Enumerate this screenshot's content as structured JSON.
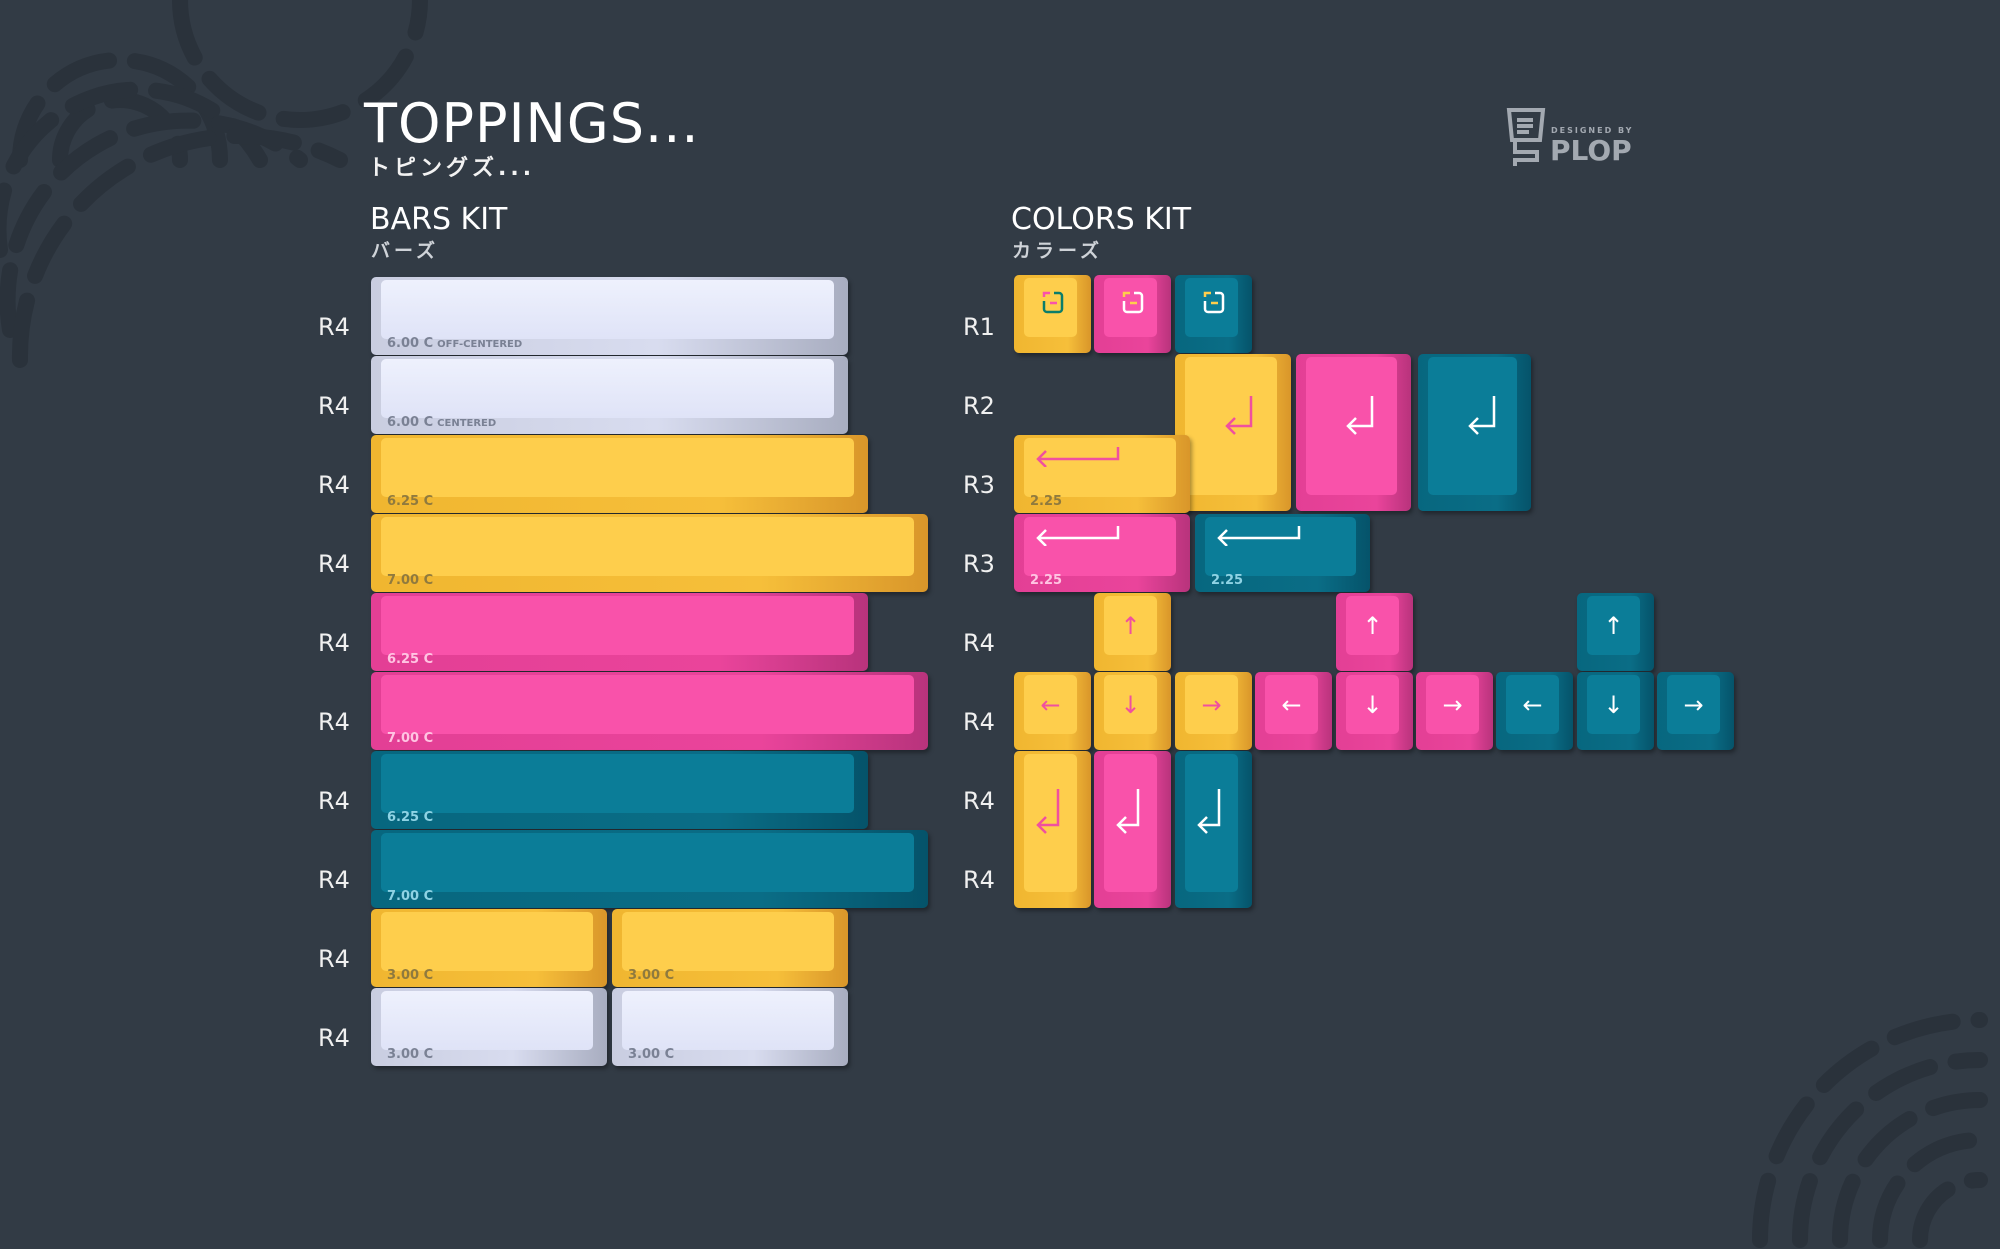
{
  "header": {
    "title": "TOPPINGS...",
    "subtitle_jp": "トピングズ...",
    "logo_small": "DESIGNED BY",
    "logo_name": "PLOP",
    "logo_icon": "keycap-mascot-icon"
  },
  "colors": {
    "background": "#323b45",
    "yellow": "#fece4c",
    "pink": "#f952aa",
    "teal": "#0b7d98",
    "white": "#e6e9fa"
  },
  "bars_kit": {
    "title": "BARS KIT",
    "title_jp": "バーズ",
    "rows": [
      "R4",
      "R4",
      "R4",
      "R4",
      "R4",
      "R4",
      "R4",
      "R4",
      "R4",
      "R4"
    ],
    "keys": [
      {
        "size": "6.00 C",
        "note": "OFF-CENTERED",
        "color": "white"
      },
      {
        "size": "6.00 C",
        "note": "CENTERED",
        "color": "white"
      },
      {
        "size": "6.25 C",
        "color": "yellow"
      },
      {
        "size": "7.00 C",
        "color": "yellow"
      },
      {
        "size": "6.25 C",
        "color": "pink"
      },
      {
        "size": "7.00 C",
        "color": "pink"
      },
      {
        "size": "6.25 C",
        "color": "teal"
      },
      {
        "size": "7.00 C",
        "color": "teal"
      },
      {
        "size": "3.00 C",
        "color": "yellow"
      },
      {
        "size": "3.00 C",
        "color": "yellow"
      },
      {
        "size": "3.00 C",
        "color": "white"
      },
      {
        "size": "3.00 C",
        "color": "white"
      }
    ]
  },
  "colors_kit": {
    "title": "COLORS KIT",
    "title_jp": "カラーズ",
    "rows": [
      "R1",
      "R2",
      "R3",
      "R3",
      "R4",
      "R4",
      "R4",
      "R4"
    ],
    "size_225": "2.25",
    "arrows": {
      "left": "←",
      "up": "↑",
      "right": "→",
      "down": "↓"
    },
    "icons": {
      "r1": "plop-face-icon",
      "enter": "return-arrow-icon"
    }
  }
}
